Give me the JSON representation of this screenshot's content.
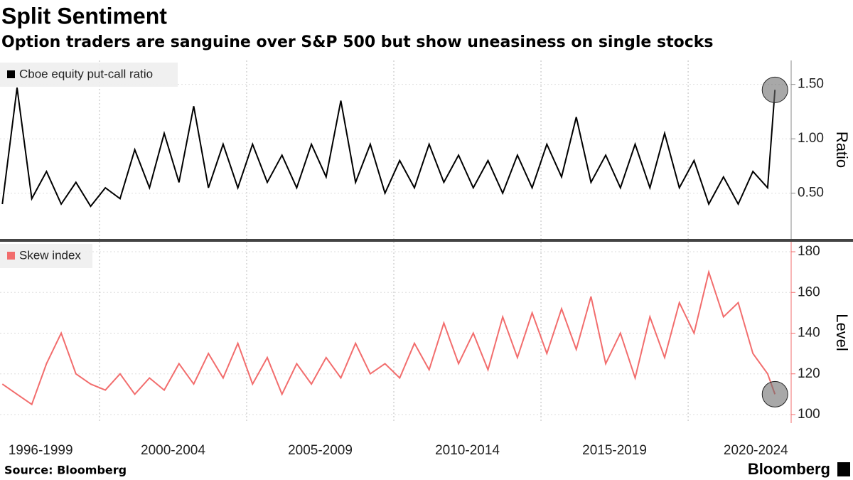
{
  "title": "Split Sentiment",
  "subtitle": "Option traders are sanguine over S&P 500 but show uneasiness on single stocks",
  "source": "Source: Bloomberg",
  "logo": "Bloomberg",
  "chart_data": [
    {
      "type": "line",
      "x": [
        1996.7,
        1997.2,
        1997.7,
        1998.2,
        1998.7,
        1999.2,
        1999.7,
        2000.2,
        2000.7,
        2001.2,
        2001.7,
        2002.2,
        2002.7,
        2003.2,
        2003.7,
        2004.2,
        2004.7,
        2005.2,
        2005.7,
        2006.2,
        2006.7,
        2007.2,
        2007.7,
        2008.2,
        2008.7,
        2009.2,
        2009.7,
        2010.2,
        2010.7,
        2011.2,
        2011.7,
        2012.2,
        2012.7,
        2013.2,
        2013.7,
        2014.2,
        2014.7,
        2015.2,
        2015.7,
        2016.2,
        2016.7,
        2017.2,
        2017.7,
        2018.2,
        2018.7,
        2019.2,
        2019.7,
        2020.2,
        2020.7,
        2021.2,
        2021.7,
        2022.2,
        2022.7,
        2022.95
      ],
      "series": [
        {
          "name": "Cboe equity put-call ratio",
          "color": "#000000",
          "values": [
            0.4,
            1.47,
            0.45,
            0.7,
            0.4,
            0.6,
            0.38,
            0.55,
            0.45,
            0.9,
            0.55,
            1.05,
            0.6,
            1.3,
            0.55,
            0.95,
            0.55,
            0.95,
            0.6,
            0.85,
            0.55,
            0.95,
            0.65,
            1.35,
            0.6,
            0.95,
            0.5,
            0.8,
            0.55,
            0.95,
            0.6,
            0.85,
            0.55,
            0.8,
            0.5,
            0.85,
            0.55,
            0.95,
            0.65,
            1.2,
            0.6,
            0.85,
            0.55,
            0.95,
            0.55,
            1.05,
            0.55,
            0.8,
            0.4,
            0.65,
            0.4,
            0.7,
            0.55,
            1.45
          ]
        }
      ],
      "xlim": [
        1996.62,
        2023.5
      ],
      "x_grid_lines": [
        2000,
        2005,
        2010,
        2015,
        2020
      ],
      "ylim": [
        0.08,
        1.72
      ],
      "yticks": [
        {
          "value": 0.5,
          "label": "0.50"
        },
        {
          "value": 1.0,
          "label": "1.00"
        },
        {
          "value": 1.5,
          "label": "1.50"
        }
      ],
      "y_axis_label": "Ratio",
      "grid": true
    },
    {
      "type": "line",
      "x": [
        1996.7,
        1997.2,
        1997.7,
        1998.2,
        1998.7,
        1999.2,
        1999.7,
        2000.2,
        2000.7,
        2001.2,
        2001.7,
        2002.2,
        2002.7,
        2003.2,
        2003.7,
        2004.2,
        2004.7,
        2005.2,
        2005.7,
        2006.2,
        2006.7,
        2007.2,
        2007.7,
        2008.2,
        2008.7,
        2009.2,
        2009.7,
        2010.2,
        2010.7,
        2011.2,
        2011.7,
        2012.2,
        2012.7,
        2013.2,
        2013.7,
        2014.2,
        2014.7,
        2015.2,
        2015.7,
        2016.2,
        2016.7,
        2017.2,
        2017.7,
        2018.2,
        2018.7,
        2019.2,
        2019.7,
        2020.2,
        2020.7,
        2021.2,
        2021.7,
        2022.2,
        2022.7,
        2022.95
      ],
      "series": [
        {
          "name": "Skew index",
          "color": "#f26d6d",
          "values": [
            115,
            110,
            105,
            125,
            140,
            120,
            115,
            112,
            120,
            110,
            118,
            112,
            125,
            115,
            130,
            118,
            135,
            115,
            128,
            110,
            125,
            115,
            128,
            118,
            135,
            120,
            125,
            118,
            135,
            122,
            145,
            125,
            140,
            122,
            148,
            128,
            150,
            130,
            152,
            132,
            158,
            125,
            140,
            118,
            148,
            128,
            155,
            140,
            170,
            148,
            155,
            130,
            120,
            110
          ]
        }
      ],
      "xlim": [
        1996.62,
        2023.5
      ],
      "x_grid_lines": [
        2000,
        2005,
        2010,
        2015,
        2020
      ],
      "xticks": [
        {
          "value": 1998,
          "label": "1996-1999"
        },
        {
          "value": 2002.5,
          "label": "2000-2004"
        },
        {
          "value": 2007.5,
          "label": "2005-2009"
        },
        {
          "value": 2012.5,
          "label": "2010-2014"
        },
        {
          "value": 2017.5,
          "label": "2015-2019"
        },
        {
          "value": 2022.3,
          "label": "2020-2024"
        }
      ],
      "ylim": [
        95.8,
        184.9
      ],
      "yticks": [
        100,
        120,
        140,
        160,
        180
      ],
      "y_axis_label": "Level",
      "grid": true
    }
  ]
}
